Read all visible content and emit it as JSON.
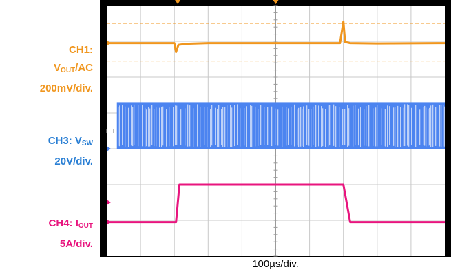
{
  "labels": {
    "ch1": {
      "line1": "CH1:",
      "line2_main": "V",
      "line2_sub": "OUT",
      "line2_rest": "/AC",
      "line3": "200mV/div."
    },
    "ch3": {
      "line1_main": "CH3: V",
      "line1_sub": "SW",
      "line2": "20V/div."
    },
    "ch4": {
      "line1_main": "CH4: I",
      "line1_sub": "OUT",
      "line2": "5A/div."
    },
    "timebase": "100µs/div."
  },
  "colors": {
    "ch1": "#f0961e",
    "ch3": "#4c84f0",
    "ch4": "#e8157e",
    "grid": "#c8c8c8",
    "frame": "#000000"
  },
  "chart_data": {
    "type": "line",
    "grid": true,
    "x_divisions": 10,
    "y_divisions": 7,
    "x_scale": "100µs/div.",
    "series": [
      {
        "name": "CH1: VOUT/AC",
        "scale": "200mV/div.",
        "x": [
          0,
          2.0,
          2.05,
          2.12,
          2.35,
          3.0,
          6.9,
          7.0,
          7.05,
          7.2,
          8.0,
          10
        ],
        "y": [
          5.95,
          5.95,
          5.7,
          5.9,
          5.93,
          5.95,
          5.95,
          6.55,
          5.98,
          5.95,
          5.94,
          5.95
        ]
      },
      {
        "name": "CH3: VSW",
        "scale": "20V/div.",
        "low": 3.0,
        "high": 4.3,
        "x_range": [
          0.3,
          10
        ]
      },
      {
        "name": "CH4: IOUT",
        "scale": "5A/div.",
        "x": [
          0,
          2.05,
          2.15,
          7.0,
          7.2,
          10
        ],
        "y": [
          0.95,
          0.95,
          2.0,
          2.0,
          0.95,
          0.95
        ]
      }
    ]
  }
}
